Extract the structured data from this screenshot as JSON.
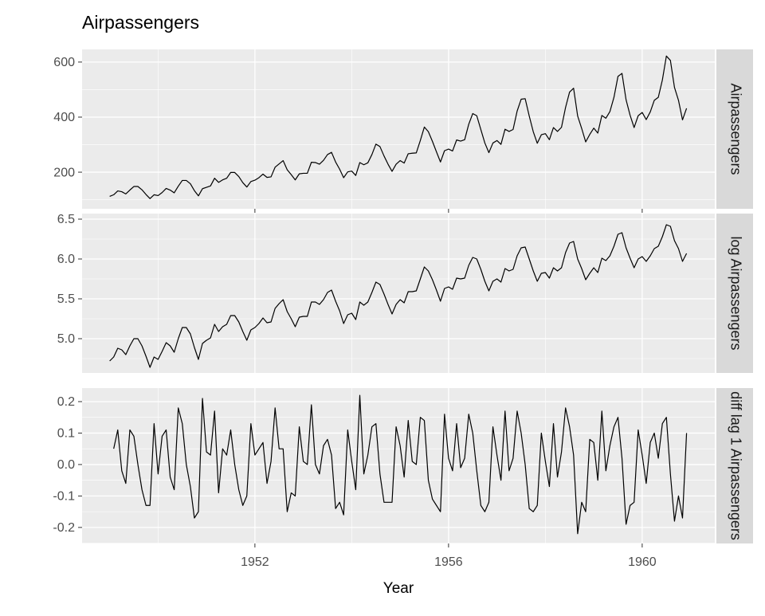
{
  "chart_data": [
    {
      "type": "line",
      "title": "Airpassengers",
      "facet_label": "Airpassengers",
      "color": "#000000",
      "xlim": [
        1948.43,
        1961.5
      ],
      "xticks": [
        1952,
        1956,
        1960
      ],
      "ylim": [
        67,
        646
      ],
      "yticks": [
        200,
        400,
        600
      ],
      "x": [
        1949,
        1949.083,
        1949.167,
        1949.25,
        1949.333,
        1949.417,
        1949.5,
        1949.583,
        1949.667,
        1949.75,
        1949.833,
        1949.917,
        1950,
        1950.083,
        1950.167,
        1950.25,
        1950.333,
        1950.417,
        1950.5,
        1950.583,
        1950.667,
        1950.75,
        1950.833,
        1950.917,
        1951,
        1951.083,
        1951.167,
        1951.25,
        1951.333,
        1951.417,
        1951.5,
        1951.583,
        1951.667,
        1951.75,
        1951.833,
        1951.917,
        1952,
        1952.083,
        1952.167,
        1952.25,
        1952.333,
        1952.417,
        1952.5,
        1952.583,
        1952.667,
        1952.75,
        1952.833,
        1952.917,
        1953,
        1953.083,
        1953.167,
        1953.25,
        1953.333,
        1953.417,
        1953.5,
        1953.583,
        1953.667,
        1953.75,
        1953.833,
        1953.917,
        1954,
        1954.083,
        1954.167,
        1954.25,
        1954.333,
        1954.417,
        1954.5,
        1954.583,
        1954.667,
        1954.75,
        1954.833,
        1954.917,
        1955,
        1955.083,
        1955.167,
        1955.25,
        1955.333,
        1955.417,
        1955.5,
        1955.583,
        1955.667,
        1955.75,
        1955.833,
        1955.917,
        1956,
        1956.083,
        1956.167,
        1956.25,
        1956.333,
        1956.417,
        1956.5,
        1956.583,
        1956.667,
        1956.75,
        1956.833,
        1956.917,
        1957,
        1957.083,
        1957.167,
        1957.25,
        1957.333,
        1957.417,
        1957.5,
        1957.583,
        1957.667,
        1957.75,
        1957.833,
        1957.917,
        1958,
        1958.083,
        1958.167,
        1958.25,
        1958.333,
        1958.417,
        1958.5,
        1958.583,
        1958.667,
        1958.75,
        1958.833,
        1958.917,
        1959,
        1959.083,
        1959.167,
        1959.25,
        1959.333,
        1959.417,
        1959.5,
        1959.583,
        1959.667,
        1959.75,
        1959.833,
        1959.917,
        1960,
        1960.083,
        1960.167,
        1960.25,
        1960.333,
        1960.417,
        1960.5,
        1960.583,
        1960.667,
        1960.75,
        1960.833,
        1960.917
      ],
      "values": [
        112,
        118,
        132,
        129,
        121,
        135,
        148,
        148,
        136,
        119,
        104,
        118,
        115,
        126,
        141,
        135,
        125,
        149,
        170,
        170,
        158,
        133,
        114,
        140,
        145,
        150,
        178,
        163,
        172,
        178,
        199,
        199,
        184,
        162,
        146,
        166,
        171,
        180,
        193,
        181,
        183,
        218,
        230,
        242,
        209,
        191,
        172,
        194,
        196,
        196,
        236,
        235,
        229,
        243,
        264,
        272,
        237,
        211,
        180,
        201,
        204,
        188,
        235,
        227,
        234,
        264,
        302,
        293,
        259,
        229,
        203,
        229,
        242,
        233,
        267,
        269,
        270,
        315,
        364,
        347,
        312,
        274,
        237,
        278,
        284,
        277,
        317,
        313,
        318,
        374,
        413,
        405,
        355,
        306,
        271,
        306,
        315,
        301,
        356,
        348,
        355,
        422,
        465,
        467,
        404,
        347,
        305,
        336,
        340,
        318,
        362,
        348,
        363,
        435,
        491,
        505,
        404,
        359,
        310,
        337,
        360,
        342,
        406,
        396,
        420,
        472,
        548,
        559,
        463,
        407,
        362,
        405,
        417,
        391,
        419,
        461,
        472,
        535,
        622,
        606,
        508,
        461,
        390,
        432
      ]
    },
    {
      "type": "line",
      "facet_label": "log Airpassengers",
      "color": "#000000",
      "xlim": [
        1948.43,
        1961.5
      ],
      "ylim": [
        4.57,
        6.57
      ],
      "yticks": [
        {
          "value": 5,
          "label": "5.0"
        },
        5.5,
        {
          "value": 6,
          "label": "6.0"
        },
        6.5
      ],
      "x": [
        1949,
        1949.083,
        1949.167,
        1949.25,
        1949.333,
        1949.417,
        1949.5,
        1949.583,
        1949.667,
        1949.75,
        1949.833,
        1949.917,
        1950,
        1950.083,
        1950.167,
        1950.25,
        1950.333,
        1950.417,
        1950.5,
        1950.583,
        1950.667,
        1950.75,
        1950.833,
        1950.917,
        1951,
        1951.083,
        1951.167,
        1951.25,
        1951.333,
        1951.417,
        1951.5,
        1951.583,
        1951.667,
        1951.75,
        1951.833,
        1951.917,
        1952,
        1952.083,
        1952.167,
        1952.25,
        1952.333,
        1952.417,
        1952.5,
        1952.583,
        1952.667,
        1952.75,
        1952.833,
        1952.917,
        1953,
        1953.083,
        1953.167,
        1953.25,
        1953.333,
        1953.417,
        1953.5,
        1953.583,
        1953.667,
        1953.75,
        1953.833,
        1953.917,
        1954,
        1954.083,
        1954.167,
        1954.25,
        1954.333,
        1954.417,
        1954.5,
        1954.583,
        1954.667,
        1954.75,
        1954.833,
        1954.917,
        1955,
        1955.083,
        1955.167,
        1955.25,
        1955.333,
        1955.417,
        1955.5,
        1955.583,
        1955.667,
        1955.75,
        1955.833,
        1955.917,
        1956,
        1956.083,
        1956.167,
        1956.25,
        1956.333,
        1956.417,
        1956.5,
        1956.583,
        1956.667,
        1956.75,
        1956.833,
        1956.917,
        1957,
        1957.083,
        1957.167,
        1957.25,
        1957.333,
        1957.417,
        1957.5,
        1957.583,
        1957.667,
        1957.75,
        1957.833,
        1957.917,
        1958,
        1958.083,
        1958.167,
        1958.25,
        1958.333,
        1958.417,
        1958.5,
        1958.583,
        1958.667,
        1958.75,
        1958.833,
        1958.917,
        1959,
        1959.083,
        1959.167,
        1959.25,
        1959.333,
        1959.417,
        1959.5,
        1959.583,
        1959.667,
        1959.75,
        1959.833,
        1959.917,
        1960,
        1960.083,
        1960.167,
        1960.25,
        1960.333,
        1960.417,
        1960.5,
        1960.583,
        1960.667,
        1960.75,
        1960.833,
        1960.917
      ],
      "values": [
        4.72,
        4.77,
        4.88,
        4.86,
        4.8,
        4.91,
        5.0,
        5.0,
        4.91,
        4.78,
        4.64,
        4.77,
        4.74,
        4.84,
        4.95,
        4.91,
        4.83,
        5.0,
        5.14,
        5.14,
        5.06,
        4.89,
        4.74,
        4.94,
        4.98,
        5.01,
        5.18,
        5.09,
        5.15,
        5.18,
        5.29,
        5.29,
        5.21,
        5.09,
        4.98,
        5.11,
        5.14,
        5.19,
        5.26,
        5.2,
        5.21,
        5.38,
        5.44,
        5.49,
        5.34,
        5.25,
        5.15,
        5.27,
        5.28,
        5.28,
        5.46,
        5.46,
        5.43,
        5.49,
        5.58,
        5.61,
        5.47,
        5.35,
        5.19,
        5.3,
        5.32,
        5.24,
        5.46,
        5.42,
        5.46,
        5.58,
        5.71,
        5.68,
        5.56,
        5.43,
        5.31,
        5.43,
        5.49,
        5.45,
        5.59,
        5.59,
        5.6,
        5.75,
        5.9,
        5.85,
        5.74,
        5.61,
        5.47,
        5.63,
        5.65,
        5.62,
        5.76,
        5.75,
        5.76,
        5.92,
        6.02,
        6.0,
        5.87,
        5.72,
        5.6,
        5.72,
        5.75,
        5.71,
        5.88,
        5.85,
        5.87,
        6.04,
        6.14,
        6.15,
        6.0,
        5.85,
        5.72,
        5.82,
        5.83,
        5.76,
        5.89,
        5.85,
        5.89,
        6.08,
        6.2,
        6.22,
        6.0,
        5.88,
        5.74,
        5.82,
        5.89,
        5.83,
        6.01,
        5.98,
        6.04,
        6.16,
        6.31,
        6.33,
        6.14,
        6.01,
        5.89,
        6.0,
        6.03,
        5.97,
        6.04,
        6.13,
        6.16,
        6.28,
        6.43,
        6.41,
        6.23,
        6.13,
        5.97,
        6.07
      ]
    },
    {
      "type": "line",
      "facet_label": "diff lag 1 Airpassengers",
      "color": "#000000",
      "xlabel": "Year",
      "xlim": [
        1948.43,
        1961.5
      ],
      "xticks": [
        1952,
        1956,
        1960
      ],
      "ylim": [
        -0.251,
        0.243
      ],
      "yticks": [
        -0.2,
        -0.1,
        {
          "value": 0,
          "label": "0.0"
        },
        0.1,
        0.2
      ],
      "x": [
        1949.083,
        1949.167,
        1949.25,
        1949.333,
        1949.417,
        1949.5,
        1949.583,
        1949.667,
        1949.75,
        1949.833,
        1949.917,
        1950,
        1950.083,
        1950.167,
        1950.25,
        1950.333,
        1950.417,
        1950.5,
        1950.583,
        1950.667,
        1950.75,
        1950.833,
        1950.917,
        1951,
        1951.083,
        1951.167,
        1951.25,
        1951.333,
        1951.417,
        1951.5,
        1951.583,
        1951.667,
        1951.75,
        1951.833,
        1951.917,
        1952,
        1952.083,
        1952.167,
        1952.25,
        1952.333,
        1952.417,
        1952.5,
        1952.583,
        1952.667,
        1952.75,
        1952.833,
        1952.917,
        1953,
        1953.083,
        1953.167,
        1953.25,
        1953.333,
        1953.417,
        1953.5,
        1953.583,
        1953.667,
        1953.75,
        1953.833,
        1953.917,
        1954,
        1954.083,
        1954.167,
        1954.25,
        1954.333,
        1954.417,
        1954.5,
        1954.583,
        1954.667,
        1954.75,
        1954.833,
        1954.917,
        1955,
        1955.083,
        1955.167,
        1955.25,
        1955.333,
        1955.417,
        1955.5,
        1955.583,
        1955.667,
        1955.75,
        1955.833,
        1955.917,
        1956,
        1956.083,
        1956.167,
        1956.25,
        1956.333,
        1956.417,
        1956.5,
        1956.583,
        1956.667,
        1956.75,
        1956.833,
        1956.917,
        1957,
        1957.083,
        1957.167,
        1957.25,
        1957.333,
        1957.417,
        1957.5,
        1957.583,
        1957.667,
        1957.75,
        1957.833,
        1957.917,
        1958,
        1958.083,
        1958.167,
        1958.25,
        1958.333,
        1958.417,
        1958.5,
        1958.583,
        1958.667,
        1958.75,
        1958.833,
        1958.917,
        1959,
        1959.083,
        1959.167,
        1959.25,
        1959.333,
        1959.417,
        1959.5,
        1959.583,
        1959.667,
        1959.75,
        1959.833,
        1959.917,
        1960,
        1960.083,
        1960.167,
        1960.25,
        1960.333,
        1960.417,
        1960.5,
        1960.583,
        1960.667,
        1960.75,
        1960.833,
        1960.917
      ],
      "values": [
        0.05,
        0.11,
        -0.02,
        -0.06,
        0.11,
        0.09,
        0.0,
        -0.08,
        -0.13,
        -0.13,
        0.13,
        -0.03,
        0.09,
        0.11,
        -0.04,
        -0.08,
        0.18,
        0.13,
        0.0,
        -0.07,
        -0.17,
        -0.15,
        0.21,
        0.04,
        0.03,
        0.17,
        -0.09,
        0.05,
        0.03,
        0.11,
        0.0,
        -0.08,
        -0.13,
        -0.1,
        0.13,
        0.03,
        0.05,
        0.07,
        -0.06,
        0.01,
        0.18,
        0.05,
        0.05,
        -0.15,
        -0.09,
        -0.1,
        0.12,
        0.01,
        0.0,
        0.19,
        0.0,
        -0.03,
        0.06,
        0.08,
        0.03,
        -0.14,
        -0.12,
        -0.16,
        0.11,
        0.01,
        -0.08,
        0.22,
        -0.03,
        0.03,
        0.12,
        0.13,
        -0.03,
        -0.12,
        -0.12,
        -0.12,
        0.12,
        0.06,
        -0.04,
        0.14,
        0.01,
        0.0,
        0.15,
        0.14,
        -0.05,
        -0.11,
        -0.13,
        -0.15,
        0.16,
        0.02,
        -0.02,
        0.13,
        -0.01,
        0.02,
        0.16,
        0.1,
        -0.02,
        -0.13,
        -0.15,
        -0.12,
        0.12,
        0.03,
        -0.05,
        0.17,
        -0.02,
        0.02,
        0.17,
        0.1,
        0.0,
        -0.14,
        -0.15,
        -0.13,
        0.1,
        0.01,
        -0.07,
        0.13,
        -0.04,
        0.04,
        0.18,
        0.12,
        0.03,
        -0.22,
        -0.12,
        -0.15,
        0.08,
        0.07,
        -0.05,
        0.17,
        -0.02,
        0.06,
        0.12,
        0.15,
        0.02,
        -0.19,
        -0.13,
        -0.12,
        0.11,
        0.03,
        -0.06,
        0.07,
        0.1,
        0.02,
        0.13,
        0.15,
        -0.03,
        -0.18,
        -0.1,
        -0.17,
        0.1
      ]
    }
  ]
}
